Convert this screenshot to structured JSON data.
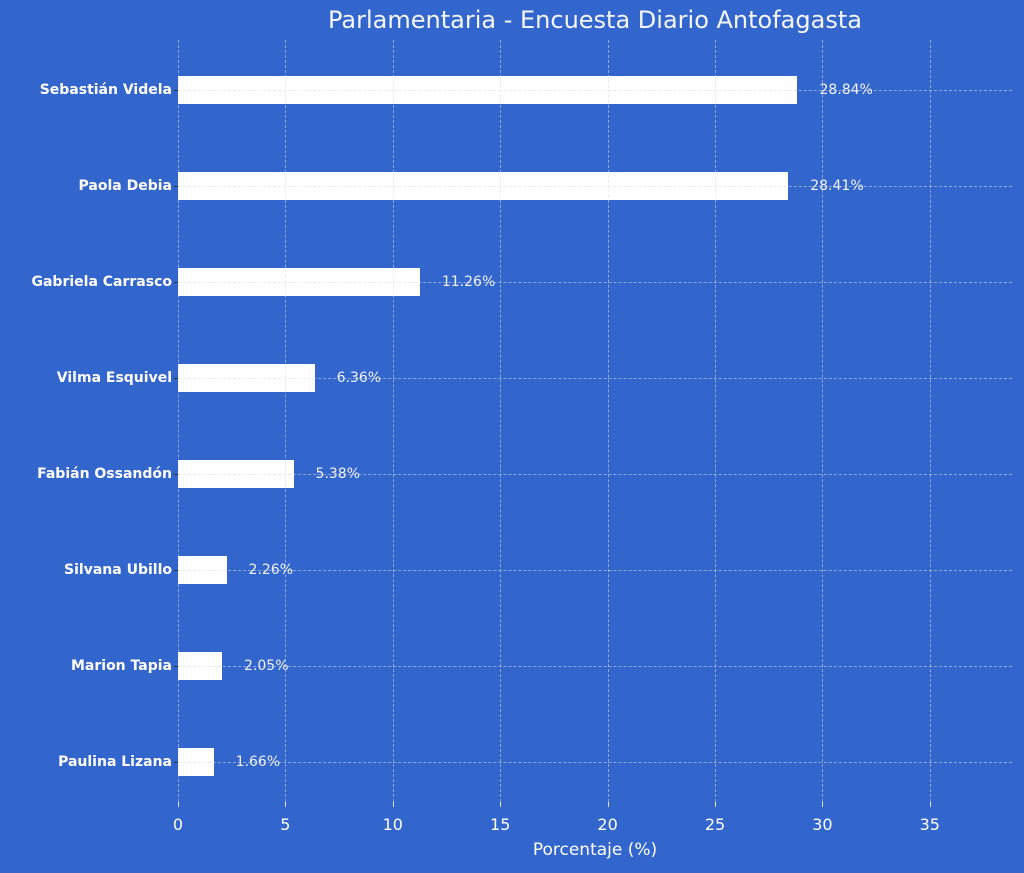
{
  "chart_data": {
    "type": "bar",
    "orientation": "horizontal",
    "title": "Parlamentaria - Encuesta Diario Antofagasta",
    "xlabel": "Porcentaje (%)",
    "ylabel": "",
    "xlim": [
      0,
      38.8
    ],
    "xticks": [
      0,
      5,
      10,
      15,
      20,
      25,
      30,
      35
    ],
    "grid": true,
    "categories": [
      "Sebastián Videla",
      "Paola Debia",
      "Gabriela Carrasco",
      "Vilma Esquivel",
      "Fabián Ossandón",
      "Silvana Ubillo",
      "Marion Tapia",
      "Paulina Lizana"
    ],
    "values": [
      28.84,
      28.41,
      11.26,
      6.36,
      5.38,
      2.26,
      2.05,
      1.66
    ],
    "value_labels": [
      "28.84%",
      "28.41%",
      "11.26%",
      "6.36%",
      "5.38%",
      "2.26%",
      "2.05%",
      "1.66%"
    ],
    "colors": {
      "background": "#3366CC",
      "bar": "#FFFFFF",
      "text": "#FFFFFF"
    }
  }
}
